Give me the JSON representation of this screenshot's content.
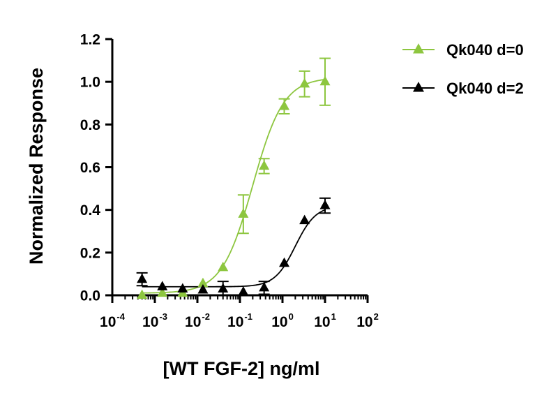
{
  "chart_data": {
    "type": "scatter",
    "xlabel": "[WT FGF-2] ng/ml",
    "ylabel": "Normalized Response",
    "x_scale": "log",
    "xlim": [
      0.0001,
      100
    ],
    "ylim": [
      0,
      1.2
    ],
    "y_ticks": [
      0,
      0.2,
      0.4,
      0.6,
      0.8,
      1.0,
      1.2
    ],
    "y_tick_labels": [
      "0.0",
      "0.2",
      "0.4",
      "0.6",
      "0.8",
      "1.0",
      "1.2"
    ],
    "x_ticks": [
      {
        "value": 0.0001,
        "base": "10",
        "exp": "-4"
      },
      {
        "value": 0.001,
        "base": "10",
        "exp": "-3"
      },
      {
        "value": 0.01,
        "base": "10",
        "exp": "-2"
      },
      {
        "value": 0.1,
        "base": "10",
        "exp": "-1"
      },
      {
        "value": 1,
        "base": "10",
        "exp": "0"
      },
      {
        "value": 10,
        "base": "10",
        "exp": "1"
      },
      {
        "value": 100,
        "base": "10",
        "exp": "2"
      }
    ],
    "grid": false,
    "legend_position": "top-right",
    "series": [
      {
        "name": "Qk040 d=0",
        "color": "#8DC63F",
        "marker": "triangle",
        "points": [
          {
            "x": 0.0005,
            "y": 0.0,
            "err": 0.0
          },
          {
            "x": 0.0015,
            "y": 0.01,
            "err": 0.0
          },
          {
            "x": 0.0045,
            "y": 0.01,
            "err": 0.0
          },
          {
            "x": 0.0135,
            "y": 0.055,
            "err": 0.0
          },
          {
            "x": 0.04,
            "y": 0.13,
            "err": 0.0
          },
          {
            "x": 0.12,
            "y": 0.38,
            "err": 0.09
          },
          {
            "x": 0.37,
            "y": 0.605,
            "err": 0.035
          },
          {
            "x": 1.1,
            "y": 0.885,
            "err": 0.035
          },
          {
            "x": 3.3,
            "y": 0.99,
            "err": 0.06
          },
          {
            "x": 10,
            "y": 1.0,
            "err": 0.11
          }
        ],
        "fit": {
          "bottom": 0.01,
          "top": 1.02,
          "ec50": 0.2,
          "hill": 1.2
        }
      },
      {
        "name": "Qk040 d=2",
        "color": "#000000",
        "marker": "triangle",
        "points": [
          {
            "x": 0.0005,
            "y": 0.075,
            "err": 0.03
          },
          {
            "x": 0.0015,
            "y": 0.04,
            "err": 0.0
          },
          {
            "x": 0.0045,
            "y": 0.03,
            "err": 0.0
          },
          {
            "x": 0.0135,
            "y": 0.025,
            "err": 0.0
          },
          {
            "x": 0.04,
            "y": 0.03,
            "err": 0.035
          },
          {
            "x": 0.12,
            "y": 0.015,
            "err": 0.0
          },
          {
            "x": 0.37,
            "y": 0.035,
            "err": 0.03
          },
          {
            "x": 1.1,
            "y": 0.15,
            "err": 0.0
          },
          {
            "x": 3.3,
            "y": 0.35,
            "err": 0.0
          },
          {
            "x": 10,
            "y": 0.42,
            "err": 0.035
          }
        ],
        "fit": {
          "bottom": 0.04,
          "top": 0.42,
          "ec50": 2.0,
          "hill": 1.8
        }
      }
    ]
  }
}
